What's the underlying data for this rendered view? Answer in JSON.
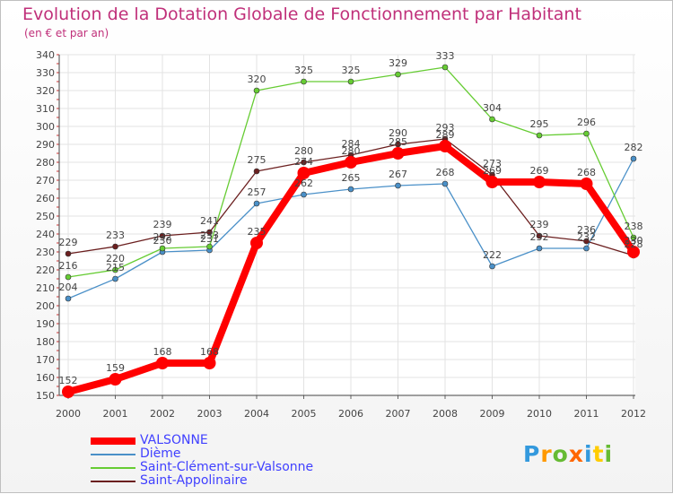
{
  "title": "Evolution de la Dotation Globale de Fonctionnement par Habitant",
  "subtitle": "(en € et par an)",
  "logo": {
    "text": "Proxiti"
  },
  "chart_data": {
    "type": "line",
    "title": "Evolution de la Dotation Globale de Fonctionnement par Habitant",
    "ylabel": "(en € et par an)",
    "xlabel": "",
    "x": [
      "2000",
      "2001",
      "2002",
      "2003",
      "2004",
      "2005",
      "2006",
      "2007",
      "2008",
      "2009",
      "2010",
      "2011",
      "2012"
    ],
    "ylim": [
      150,
      340
    ],
    "yticks": [
      150,
      160,
      170,
      180,
      190,
      200,
      210,
      220,
      230,
      240,
      250,
      260,
      270,
      280,
      290,
      300,
      310,
      320,
      330,
      340
    ],
    "grid": true,
    "legend": "bottom-left",
    "series": [
      {
        "name": "VALSONNE",
        "color": "#ff0000",
        "values": [
          152,
          159,
          168,
          168,
          235,
          274,
          280,
          285,
          289,
          269,
          269,
          268,
          230
        ]
      },
      {
        "name": "Dième",
        "color": "#4a90c8",
        "values": [
          204,
          215,
          230,
          231,
          257,
          262,
          265,
          267,
          268,
          222,
          232,
          232,
          282
        ]
      },
      {
        "name": "Saint-Clément-sur-Valsonne",
        "color": "#66cc33",
        "values": [
          216,
          220,
          232,
          233,
          320,
          325,
          325,
          329,
          333,
          304,
          295,
          296,
          238
        ]
      },
      {
        "name": "Saint-Appolinaire",
        "color": "#6b1f1f",
        "values": [
          229,
          233,
          239,
          241,
          275,
          280,
          284,
          290,
          293,
          273,
          239,
          236,
          228
        ]
      }
    ]
  }
}
